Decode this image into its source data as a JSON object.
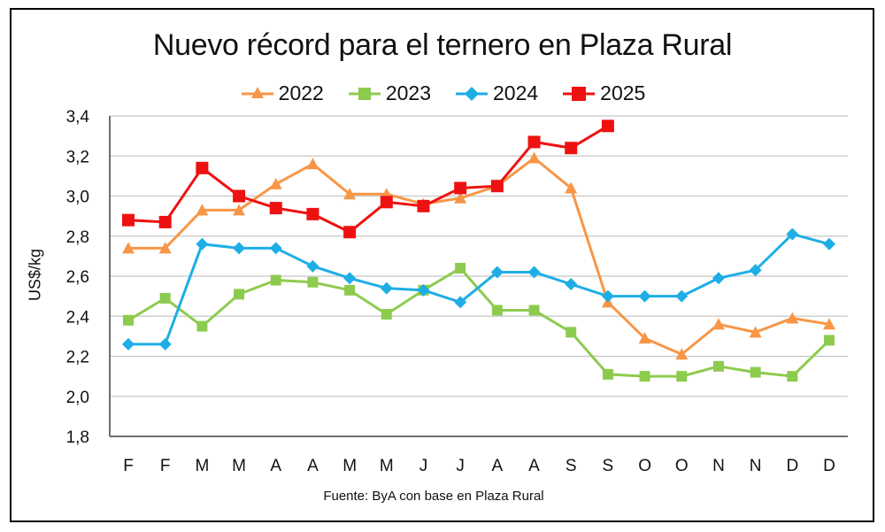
{
  "chart_data": {
    "type": "line",
    "title": "Nuevo récord para el ternero en Plaza Rural",
    "xlabel": "",
    "ylabel": "US$/kg",
    "source": "Fuente: ByA con base en Plaza Rural",
    "categories": [
      "F",
      "F",
      "M",
      "M",
      "A",
      "A",
      "M",
      "M",
      "J",
      "J",
      "A",
      "A",
      "S",
      "S",
      "O",
      "O",
      "N",
      "N",
      "D",
      "D"
    ],
    "ylim": [
      1.8,
      3.4
    ],
    "yticks": [
      "1,8",
      "2,0",
      "2,2",
      "2,4",
      "2,6",
      "2,8",
      "3,0",
      "3,2",
      "3,4"
    ],
    "ytick_values": [
      1.8,
      2.0,
      2.2,
      2.4,
      2.6,
      2.8,
      3.0,
      3.2,
      3.4
    ],
    "grid": true,
    "legend_position": "top-center",
    "series": [
      {
        "name": "2022",
        "color": "#F79646",
        "marker": "triangle",
        "values": [
          2.74,
          2.74,
          2.93,
          2.93,
          3.06,
          3.16,
          3.01,
          3.01,
          2.96,
          2.99,
          3.05,
          3.19,
          3.04,
          2.47,
          2.29,
          2.21,
          2.36,
          2.32,
          2.39,
          2.36
        ]
      },
      {
        "name": "2023",
        "color": "#8DCB4F",
        "marker": "square",
        "values": [
          2.38,
          2.49,
          2.35,
          2.51,
          2.58,
          2.57,
          2.53,
          2.41,
          2.53,
          2.64,
          2.43,
          2.43,
          2.32,
          2.11,
          2.1,
          2.1,
          2.15,
          2.12,
          2.1,
          2.28
        ]
      },
      {
        "name": "2024",
        "color": "#1EAEE5",
        "marker": "diamond",
        "values": [
          2.26,
          2.26,
          2.76,
          2.74,
          2.74,
          2.65,
          2.59,
          2.54,
          2.53,
          2.47,
          2.62,
          2.62,
          2.56,
          2.5,
          2.5,
          2.5,
          2.59,
          2.63,
          2.81,
          2.76
        ]
      },
      {
        "name": "2025",
        "color": "#EE1111",
        "marker": "square",
        "values": [
          2.88,
          2.87,
          3.14,
          3.0,
          2.94,
          2.91,
          2.82,
          2.97,
          2.95,
          3.04,
          3.05,
          3.27,
          3.24,
          3.35
        ]
      }
    ]
  }
}
